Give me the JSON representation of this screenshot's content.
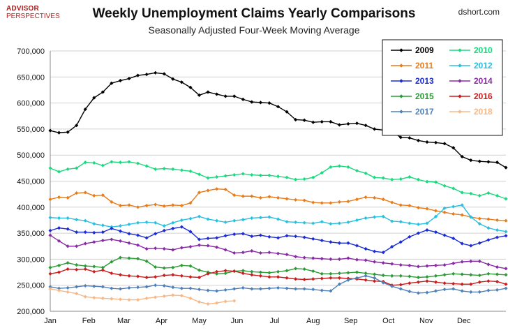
{
  "header": {
    "logo_line1": "ADVISOR",
    "logo_line2": "PERSPECTIVES",
    "credit": "dshort.com"
  },
  "chart_data": {
    "type": "line",
    "title": "Weekly Unemployment Claims Yearly Comparisons",
    "subtitle": "Seasonally Adjusted Four-Week Moving Average",
    "xlabel": "",
    "ylabel": "",
    "ylim": [
      200000,
      700000
    ],
    "yticks": [
      200000,
      250000,
      300000,
      350000,
      400000,
      450000,
      500000,
      550000,
      600000,
      650000,
      700000
    ],
    "ytick_labels": [
      "200,000",
      "250,000",
      "300,000",
      "350,000",
      "400,000",
      "450,000",
      "500,000",
      "550,000",
      "600,000",
      "650,000",
      "700,000"
    ],
    "x_unit": "week of year",
    "xlim": [
      1,
      52
    ],
    "month_labels": [
      "Jan",
      "Feb",
      "Mar",
      "Apr",
      "May",
      "Jun",
      "Jul",
      "Aug",
      "Sep",
      "Oct",
      "Nov",
      "Dec"
    ],
    "month_start_weeks": [
      1,
      5.4,
      9.4,
      13.7,
      18,
      22.3,
      26.6,
      31,
      35.3,
      39.6,
      43.9,
      48.2
    ],
    "grid": "horizontal",
    "legend_position": "top-right",
    "series": [
      {
        "name": "2009",
        "color": "#000000",
        "values": [
          547000,
          543000,
          544000,
          557000,
          588000,
          610000,
          621000,
          638000,
          643000,
          647000,
          653000,
          655000,
          658000,
          656000,
          646000,
          640000,
          630000,
          615000,
          621000,
          617000,
          613000,
          613000,
          607000,
          602000,
          601000,
          600000,
          593000,
          583000,
          568000,
          567000,
          563000,
          564000,
          564000,
          558000,
          560000,
          561000,
          557000,
          550000,
          548000,
          545000,
          534000,
          533000,
          528000,
          525000,
          524000,
          522000,
          514000,
          497000,
          490000,
          488000,
          487000,
          486000,
          476000
        ]
      },
      {
        "name": "2010",
        "color": "#1bd97e",
        "values": [
          475000,
          468000,
          473000,
          475000,
          486000,
          485000,
          480000,
          487000,
          486000,
          487000,
          484000,
          479000,
          473000,
          474000,
          473000,
          471000,
          469000,
          463000,
          456000,
          458000,
          460000,
          462000,
          464000,
          462000,
          461000,
          461000,
          459000,
          457000,
          453000,
          454000,
          457000,
          466000,
          477000,
          479000,
          477000,
          470000,
          465000,
          457000,
          456000,
          453000,
          454000,
          458000,
          453000,
          449000,
          448000,
          441000,
          436000,
          428000,
          426000,
          422000,
          427000,
          422000,
          416000
        ]
      },
      {
        "name": "2011",
        "color": "#e87c1b",
        "values": [
          415000,
          419000,
          418000,
          427000,
          428000,
          422000,
          423000,
          410000,
          403000,
          404000,
          400000,
          403000,
          405000,
          402000,
          404000,
          403000,
          408000,
          428000,
          432000,
          435000,
          434000,
          423000,
          421000,
          421000,
          418000,
          420000,
          418000,
          416000,
          414000,
          413000,
          409000,
          408000,
          408000,
          410000,
          411000,
          415000,
          419000,
          418000,
          415000,
          409000,
          404000,
          403000,
          399000,
          397000,
          393000,
          390000,
          387000,
          385000,
          381000,
          378000,
          377000,
          375000,
          374000
        ]
      },
      {
        "name": "2012",
        "color": "#28c0e0",
        "values": [
          380000,
          379000,
          379000,
          376000,
          374000,
          368000,
          365000,
          362000,
          364000,
          367000,
          370000,
          371000,
          370000,
          364000,
          370000,
          375000,
          378000,
          382000,
          377000,
          374000,
          371000,
          374000,
          376000,
          379000,
          380000,
          381000,
          377000,
          372000,
          371000,
          370000,
          369000,
          372000,
          368000,
          369000,
          371000,
          375000,
          379000,
          381000,
          382000,
          373000,
          372000,
          369000,
          367000,
          369000,
          382000,
          398000,
          401000,
          404000,
          381000,
          368000,
          360000,
          356000,
          353000
        ]
      },
      {
        "name": "2013",
        "color": "#1a2ad6",
        "values": [
          355000,
          360000,
          358000,
          352000,
          352000,
          351000,
          352000,
          359000,
          354000,
          349000,
          346000,
          341000,
          349000,
          355000,
          359000,
          362000,
          353000,
          338000,
          340000,
          341000,
          345000,
          348000,
          349000,
          344000,
          346000,
          343000,
          341000,
          345000,
          344000,
          342000,
          339000,
          336000,
          333000,
          331000,
          331000,
          326000,
          320000,
          315000,
          313000,
          324000,
          333000,
          343000,
          350000,
          356000,
          352000,
          346000,
          340000,
          330000,
          326000,
          331000,
          337000,
          342000,
          345000
        ]
      },
      {
        "name": "2014",
        "color": "#8a2aa8",
        "values": [
          346000,
          335000,
          325000,
          325000,
          330000,
          333000,
          336000,
          338000,
          335000,
          331000,
          327000,
          320000,
          321000,
          320000,
          318000,
          322000,
          324000,
          327000,
          326000,
          323000,
          318000,
          312000,
          313000,
          316000,
          312000,
          313000,
          311000,
          309000,
          305000,
          303000,
          302000,
          301000,
          300000,
          300000,
          302000,
          299000,
          298000,
          295000,
          293000,
          291000,
          289000,
          288000,
          286000,
          287000,
          288000,
          289000,
          292000,
          295000,
          296000,
          296000,
          290000,
          285000,
          282000
        ]
      },
      {
        "name": "2015",
        "color": "#2a9b35",
        "values": [
          284000,
          288000,
          293000,
          289000,
          287000,
          286000,
          284000,
          295000,
          303000,
          302000,
          301000,
          296000,
          285000,
          283000,
          284000,
          288000,
          287000,
          279000,
          275000,
          272000,
          273000,
          277000,
          278000,
          276000,
          275000,
          274000,
          276000,
          278000,
          282000,
          281000,
          277000,
          272000,
          272000,
          273000,
          274000,
          275000,
          273000,
          271000,
          269000,
          268000,
          268000,
          267000,
          265000,
          266000,
          268000,
          270000,
          272000,
          271000,
          270000,
          269000,
          272000,
          271000,
          270000
        ]
      },
      {
        "name": "2016",
        "color": "#c81e1e",
        "values": [
          272000,
          275000,
          281000,
          280000,
          281000,
          276000,
          279000,
          273000,
          270000,
          268000,
          267000,
          265000,
          266000,
          269000,
          270000,
          268000,
          266000,
          265000,
          272000,
          276000,
          278000,
          277000,
          273000,
          270000,
          268000,
          266000,
          266000,
          264000,
          262000,
          261000,
          262000,
          263000,
          264000,
          264000,
          263000,
          262000,
          260000,
          258000,
          257000,
          250000,
          251000,
          254000,
          256000,
          258000,
          256000,
          254000,
          253000,
          252000,
          252000,
          256000,
          258000,
          257000,
          252000
        ]
      },
      {
        "name": "2017",
        "color": "#4f80b9",
        "values": [
          247000,
          244000,
          245000,
          247000,
          249000,
          248000,
          247000,
          244000,
          243000,
          245000,
          246000,
          247000,
          250000,
          249000,
          246000,
          244000,
          244000,
          242000,
          240000,
          239000,
          241000,
          243000,
          245000,
          243000,
          243000,
          244000,
          245000,
          244000,
          243000,
          243000,
          242000,
          240000,
          239000,
          252000,
          260000,
          264000,
          268000,
          264000,
          255000,
          248000,
          243000,
          238000,
          235000,
          236000,
          239000,
          242000,
          243000,
          239000,
          237000,
          237000,
          240000,
          241000,
          244000
        ]
      },
      {
        "name": "2018",
        "color": "#f7b886",
        "values": [
          243000,
          240000,
          237000,
          234000,
          228000,
          226000,
          225000,
          224000,
          223000,
          222000,
          222000,
          225000,
          227000,
          229000,
          231000,
          230000,
          225000,
          218000,
          214000,
          216000,
          219000,
          220000
        ]
      }
    ]
  }
}
